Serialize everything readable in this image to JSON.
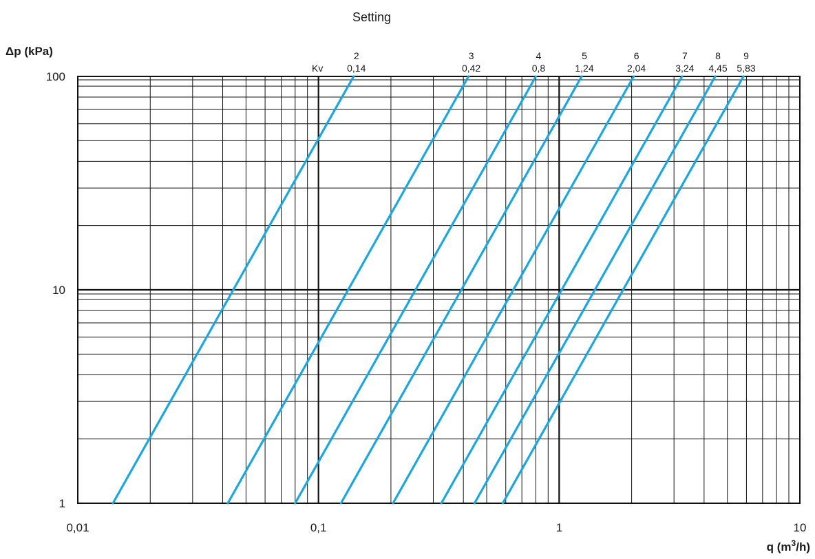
{
  "chart_data": {
    "type": "line",
    "title": "Setting",
    "xlabel": "q (m3/h)",
    "xlabel_main": "q (m",
    "xlabel_sup": "3",
    "xlabel_end": "/h)",
    "ylabel": "Δp (kPa)",
    "xscale": "log",
    "yscale": "log",
    "xlim": [
      0.01,
      10
    ],
    "ylim": [
      1,
      100
    ],
    "grid": true,
    "x_ticks": [
      "0,01",
      "0,1",
      "1",
      "10"
    ],
    "y_ticks": [
      "1",
      "10",
      "100"
    ],
    "kv_label": "Kv",
    "line_color": "#1aa7e0",
    "series": [
      {
        "setting": "2",
        "kv_label": "0,14",
        "kv": 0.14
      },
      {
        "setting": "3",
        "kv_label": "0,42",
        "kv": 0.42
      },
      {
        "setting": "4",
        "kv_label": "0,8",
        "kv": 0.8
      },
      {
        "setting": "5",
        "kv_label": "1,24",
        "kv": 1.24
      },
      {
        "setting": "6",
        "kv_label": "2,04",
        "kv": 2.04
      },
      {
        "setting": "7",
        "kv_label": "3,24",
        "kv": 3.24
      },
      {
        "setting": "8",
        "kv_label": "4,45",
        "kv": 4.45
      },
      {
        "setting": "9",
        "kv_label": "5,83",
        "kv": 5.83
      }
    ]
  }
}
